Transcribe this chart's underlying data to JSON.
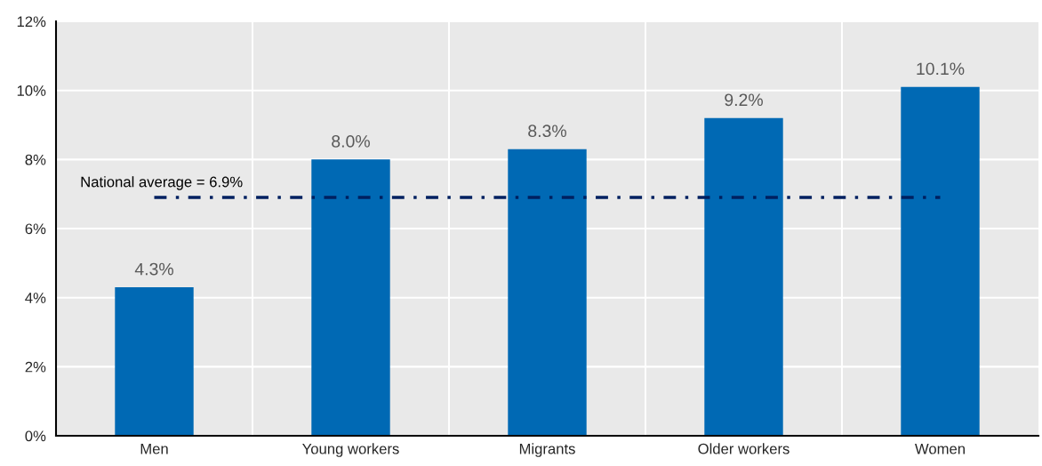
{
  "chart_data": {
    "type": "bar",
    "categories": [
      "Men",
      "Young workers",
      "Migrants",
      "Older workers",
      "Women"
    ],
    "values": [
      4.3,
      8.0,
      8.3,
      9.2,
      10.1
    ],
    "color": "#0069b4",
    "value_labels": [
      "4.3%",
      "8.0%",
      "8.3%",
      "9.2%",
      "10.1%"
    ],
    "ylim": [
      0,
      12
    ],
    "yticks": [
      {
        "value": 0,
        "label": "0%"
      },
      {
        "value": 2,
        "label": "2%"
      },
      {
        "value": 4,
        "label": "4%"
      },
      {
        "value": 6,
        "label": "6%"
      },
      {
        "value": 8,
        "label": "8%"
      },
      {
        "value": 10,
        "label": "10%"
      },
      {
        "value": 12,
        "label": "12%"
      }
    ],
    "grid": true,
    "ref_lines": [
      {
        "axis": "y",
        "value": 6.9,
        "label": "National average = 6.9%",
        "color": "#002060",
        "line_style": "dashdot"
      }
    ]
  }
}
